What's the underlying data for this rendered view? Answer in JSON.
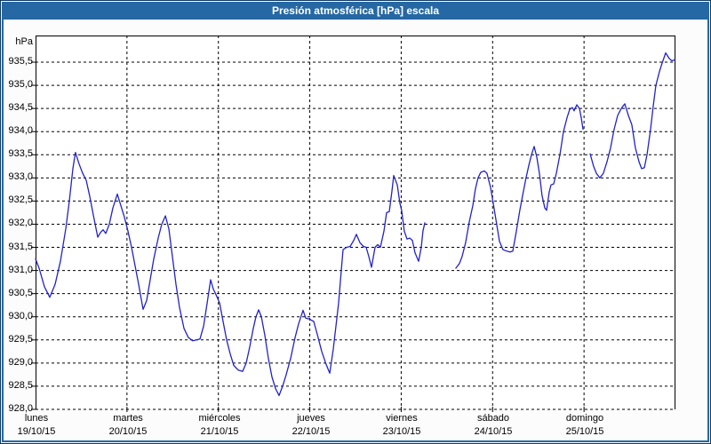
{
  "window": {
    "title": "Presión atmosférica [hPa] escala",
    "title_bar_color": "#2568a4",
    "frame_border_color": "#0e3763",
    "background_color": "#fcfcfc"
  },
  "chart_data": {
    "type": "line",
    "title": "Presión atmosférica [hPa] escala",
    "plot_background": "#ffffff",
    "grid_color": "#000000",
    "grid_style": "dashed",
    "y_axis": {
      "unit_label": "hPa",
      "min": 928.0,
      "max": 936.1,
      "tick_step": 0.5,
      "decimal_separator": ",",
      "tick_labels": [
        "935,5",
        "935,0",
        "934,5",
        "934,0",
        "933,5",
        "933,0",
        "932,5",
        "932,0",
        "931,5",
        "931,0",
        "930,5",
        "930,0",
        "929,5",
        "929,0",
        "928,5",
        "928,0"
      ],
      "tick_values": [
        935.5,
        935.0,
        934.5,
        934.0,
        933.5,
        933.0,
        932.5,
        932.0,
        931.5,
        931.0,
        930.5,
        930.0,
        929.5,
        929.0,
        928.5,
        928.0
      ]
    },
    "x_axis": {
      "unit": "days",
      "range_days": 7,
      "grid": "vertical dashed line at the start of each day",
      "day_labels": [
        {
          "weekday": "lunes",
          "date": "19/10/15"
        },
        {
          "weekday": "martes",
          "date": "20/10/15"
        },
        {
          "weekday": "miércoles",
          "date": "21/10/15"
        },
        {
          "weekday": "jueves",
          "date": "22/10/15"
        },
        {
          "weekday": "viernes",
          "date": "23/10/15"
        },
        {
          "weekday": "sábado",
          "date": "24/10/15"
        },
        {
          "weekday": "domingo",
          "date": "25/10/15"
        }
      ]
    },
    "series": [
      {
        "name": "Presión atmosférica",
        "unit": "hPa",
        "color": "#2222cc",
        "note": "t = days since lunes 19/10/15 00:00; gaps between segments are missing data",
        "segments": [
          [
            [
              0,
              931.25
            ],
            [
              0.039,
              931.05
            ],
            [
              0.097,
              930.65
            ],
            [
              0.156,
              930.42
            ],
            [
              0.214,
              930.7
            ],
            [
              0.272,
              931.2
            ],
            [
              0.331,
              931.9
            ],
            [
              0.369,
              932.5
            ],
            [
              0.408,
              933.2
            ],
            [
              0.437,
              933.55
            ],
            [
              0.476,
              933.3
            ],
            [
              0.515,
              933.1
            ],
            [
              0.554,
              932.95
            ],
            [
              0.593,
              932.6
            ],
            [
              0.632,
              932.2
            ],
            [
              0.681,
              931.72
            ],
            [
              0.71,
              931.82
            ],
            [
              0.739,
              931.88
            ],
            [
              0.768,
              931.8
            ],
            [
              0.807,
              932.0
            ],
            [
              0.846,
              932.35
            ],
            [
              0.894,
              932.65
            ],
            [
              0.933,
              932.4
            ],
            [
              0.972,
              932.15
            ],
            [
              1.011,
              931.85
            ],
            [
              1.05,
              931.5
            ],
            [
              1.089,
              931.1
            ],
            [
              1.128,
              930.7
            ],
            [
              1.176,
              930.16
            ],
            [
              1.215,
              930.35
            ],
            [
              1.254,
              930.8
            ],
            [
              1.293,
              931.25
            ],
            [
              1.342,
              931.7
            ],
            [
              1.381,
              932.0
            ],
            [
              1.42,
              932.18
            ],
            [
              1.458,
              931.9
            ],
            [
              1.497,
              931.3
            ],
            [
              1.536,
              930.7
            ],
            [
              1.575,
              930.2
            ],
            [
              1.624,
              929.75
            ],
            [
              1.672,
              929.55
            ],
            [
              1.721,
              929.48
            ],
            [
              1.76,
              929.5
            ],
            [
              1.799,
              929.52
            ],
            [
              1.838,
              929.8
            ],
            [
              1.877,
              930.3
            ],
            [
              1.915,
              930.8
            ],
            [
              1.944,
              930.6
            ],
            [
              1.974,
              930.48
            ],
            [
              2.013,
              930.3
            ],
            [
              2.051,
              929.9
            ],
            [
              2.09,
              929.5
            ],
            [
              2.129,
              929.2
            ],
            [
              2.168,
              928.95
            ],
            [
              2.217,
              928.85
            ],
            [
              2.265,
              928.82
            ],
            [
              2.304,
              929.0
            ],
            [
              2.343,
              929.35
            ],
            [
              2.382,
              929.75
            ],
            [
              2.411,
              930.0
            ],
            [
              2.44,
              930.15
            ],
            [
              2.47,
              930.0
            ],
            [
              2.508,
              929.6
            ],
            [
              2.547,
              929.1
            ],
            [
              2.586,
              928.7
            ],
            [
              2.625,
              928.45
            ],
            [
              2.664,
              928.3
            ],
            [
              2.703,
              928.5
            ],
            [
              2.742,
              928.75
            ],
            [
              2.79,
              929.1
            ],
            [
              2.839,
              929.55
            ],
            [
              2.878,
              929.85
            ],
            [
              2.926,
              930.14
            ],
            [
              2.956,
              929.97
            ],
            [
              2.995,
              929.95
            ],
            [
              3.043,
              929.9
            ],
            [
              3.082,
              929.62
            ],
            [
              3.131,
              929.25
            ],
            [
              3.179,
              928.97
            ],
            [
              3.218,
              928.78
            ],
            [
              3.257,
              929.3
            ],
            [
              3.286,
              929.8
            ],
            [
              3.315,
              930.3
            ],
            [
              3.344,
              931.0
            ],
            [
              3.364,
              931.45
            ],
            [
              3.403,
              931.5
            ],
            [
              3.442,
              931.52
            ],
            [
              3.481,
              931.65
            ],
            [
              3.51,
              931.78
            ],
            [
              3.549,
              931.6
            ],
            [
              3.587,
              931.52
            ],
            [
              3.617,
              931.5
            ],
            [
              3.646,
              931.3
            ],
            [
              3.675,
              931.07
            ],
            [
              3.714,
              931.5
            ],
            [
              3.743,
              931.56
            ],
            [
              3.772,
              931.5
            ],
            [
              3.811,
              931.85
            ],
            [
              3.84,
              932.25
            ],
            [
              3.869,
              932.27
            ],
            [
              3.898,
              932.7
            ],
            [
              3.918,
              933.05
            ],
            [
              3.957,
              932.85
            ],
            [
              3.986,
              932.45
            ],
            [
              4.005,
              932.3
            ],
            [
              4.034,
              931.85
            ],
            [
              4.064,
              931.68
            ],
            [
              4.093,
              931.7
            ],
            [
              4.122,
              931.65
            ],
            [
              4.151,
              931.38
            ],
            [
              4.19,
              931.2
            ],
            [
              4.219,
              931.5
            ],
            [
              4.238,
              931.85
            ],
            [
              4.258,
              932.03
            ]
          ],
          [
            [
              4.598,
              931.05
            ],
            [
              4.637,
              931.15
            ],
            [
              4.666,
              931.3
            ],
            [
              4.705,
              931.6
            ],
            [
              4.744,
              932.05
            ],
            [
              4.783,
              932.4
            ],
            [
              4.812,
              932.76
            ],
            [
              4.841,
              933.0
            ],
            [
              4.87,
              933.12
            ],
            [
              4.909,
              933.15
            ],
            [
              4.938,
              933.1
            ],
            [
              4.977,
              932.8
            ],
            [
              5.007,
              932.45
            ],
            [
              5.036,
              932.1
            ],
            [
              5.075,
              931.63
            ],
            [
              5.114,
              931.45
            ],
            [
              5.153,
              931.42
            ],
            [
              5.191,
              931.4
            ],
            [
              5.221,
              931.42
            ],
            [
              5.26,
              931.85
            ],
            [
              5.298,
              932.3
            ],
            [
              5.328,
              932.62
            ],
            [
              5.366,
              933.0
            ],
            [
              5.396,
              933.27
            ],
            [
              5.425,
              933.5
            ],
            [
              5.454,
              933.68
            ],
            [
              5.483,
              933.45
            ],
            [
              5.512,
              933.1
            ],
            [
              5.541,
              932.62
            ],
            [
              5.571,
              932.35
            ],
            [
              5.59,
              932.3
            ],
            [
              5.619,
              932.7
            ],
            [
              5.639,
              932.85
            ],
            [
              5.668,
              932.87
            ],
            [
              5.697,
              933.1
            ],
            [
              5.736,
              933.5
            ],
            [
              5.775,
              934.0
            ],
            [
              5.814,
              934.3
            ],
            [
              5.843,
              934.48
            ],
            [
              5.872,
              934.52
            ],
            [
              5.892,
              934.45
            ],
            [
              5.921,
              934.58
            ],
            [
              5.95,
              934.5
            ],
            [
              5.969,
              934.3
            ],
            [
              5.989,
              934.05
            ]
          ],
          [
            [
              6.067,
              933.52
            ],
            [
              6.105,
              933.25
            ],
            [
              6.135,
              933.1
            ],
            [
              6.173,
              933.0
            ],
            [
              6.212,
              933.1
            ],
            [
              6.251,
              933.35
            ],
            [
              6.29,
              933.65
            ],
            [
              6.329,
              934.05
            ],
            [
              6.368,
              934.35
            ],
            [
              6.407,
              934.5
            ],
            [
              6.446,
              934.6
            ],
            [
              6.485,
              934.35
            ],
            [
              6.523,
              934.15
            ],
            [
              6.562,
              933.65
            ],
            [
              6.601,
              933.35
            ],
            [
              6.63,
              933.2
            ],
            [
              6.66,
              933.22
            ],
            [
              6.689,
              933.5
            ],
            [
              6.728,
              934.05
            ],
            [
              6.757,
              934.55
            ],
            [
              6.786,
              935.0
            ],
            [
              6.825,
              935.3
            ],
            [
              6.854,
              935.48
            ],
            [
              6.893,
              935.7
            ],
            [
              6.932,
              935.58
            ],
            [
              6.961,
              935.53
            ],
            [
              6.99,
              935.55
            ]
          ]
        ]
      }
    ]
  }
}
